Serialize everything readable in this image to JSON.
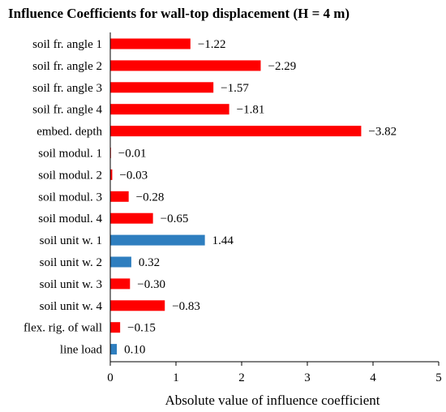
{
  "chart_data": {
    "type": "bar",
    "orientation": "horizontal",
    "title": "Influence Coefficients for wall-top displacement  (H = 4 m)",
    "xlabel": "Absolute value of influence coefficient",
    "ylabel": "",
    "xlim": [
      0,
      5
    ],
    "xticks": [
      "0",
      "1",
      "2",
      "3",
      "4",
      "5"
    ],
    "grid": false,
    "categories": [
      "soil fr. angle 1",
      "soil fr. angle 2",
      "soil fr. angle 3",
      "soil fr. angle 4",
      "embed. depth",
      "soil modul. 1",
      "soil modul. 2",
      "soil modul. 3",
      "soil modul. 4",
      "soil unit w. 1",
      "soil unit w. 2",
      "soil unit w. 3",
      "soil unit w. 4",
      "flex. rig. of wall",
      "line load"
    ],
    "values": [
      1.22,
      2.29,
      1.57,
      1.81,
      3.82,
      0.01,
      0.03,
      0.28,
      0.65,
      1.44,
      0.32,
      0.3,
      0.83,
      0.15,
      0.1
    ],
    "labels": [
      "−1.22",
      "−2.29",
      "−1.57",
      "−1.81",
      "−3.82",
      "−0.01",
      "−0.03",
      "−0.28",
      "−0.65",
      "1.44",
      "0.32",
      "−0.30",
      "−0.83",
      "−0.15",
      "0.10"
    ],
    "sign": [
      "negative",
      "negative",
      "negative",
      "negative",
      "negative",
      "negative",
      "negative",
      "negative",
      "negative",
      "positive",
      "positive",
      "negative",
      "negative",
      "negative",
      "positive"
    ],
    "colors": {
      "negative": "#ff0000",
      "positive": "#2e7ebf"
    }
  }
}
